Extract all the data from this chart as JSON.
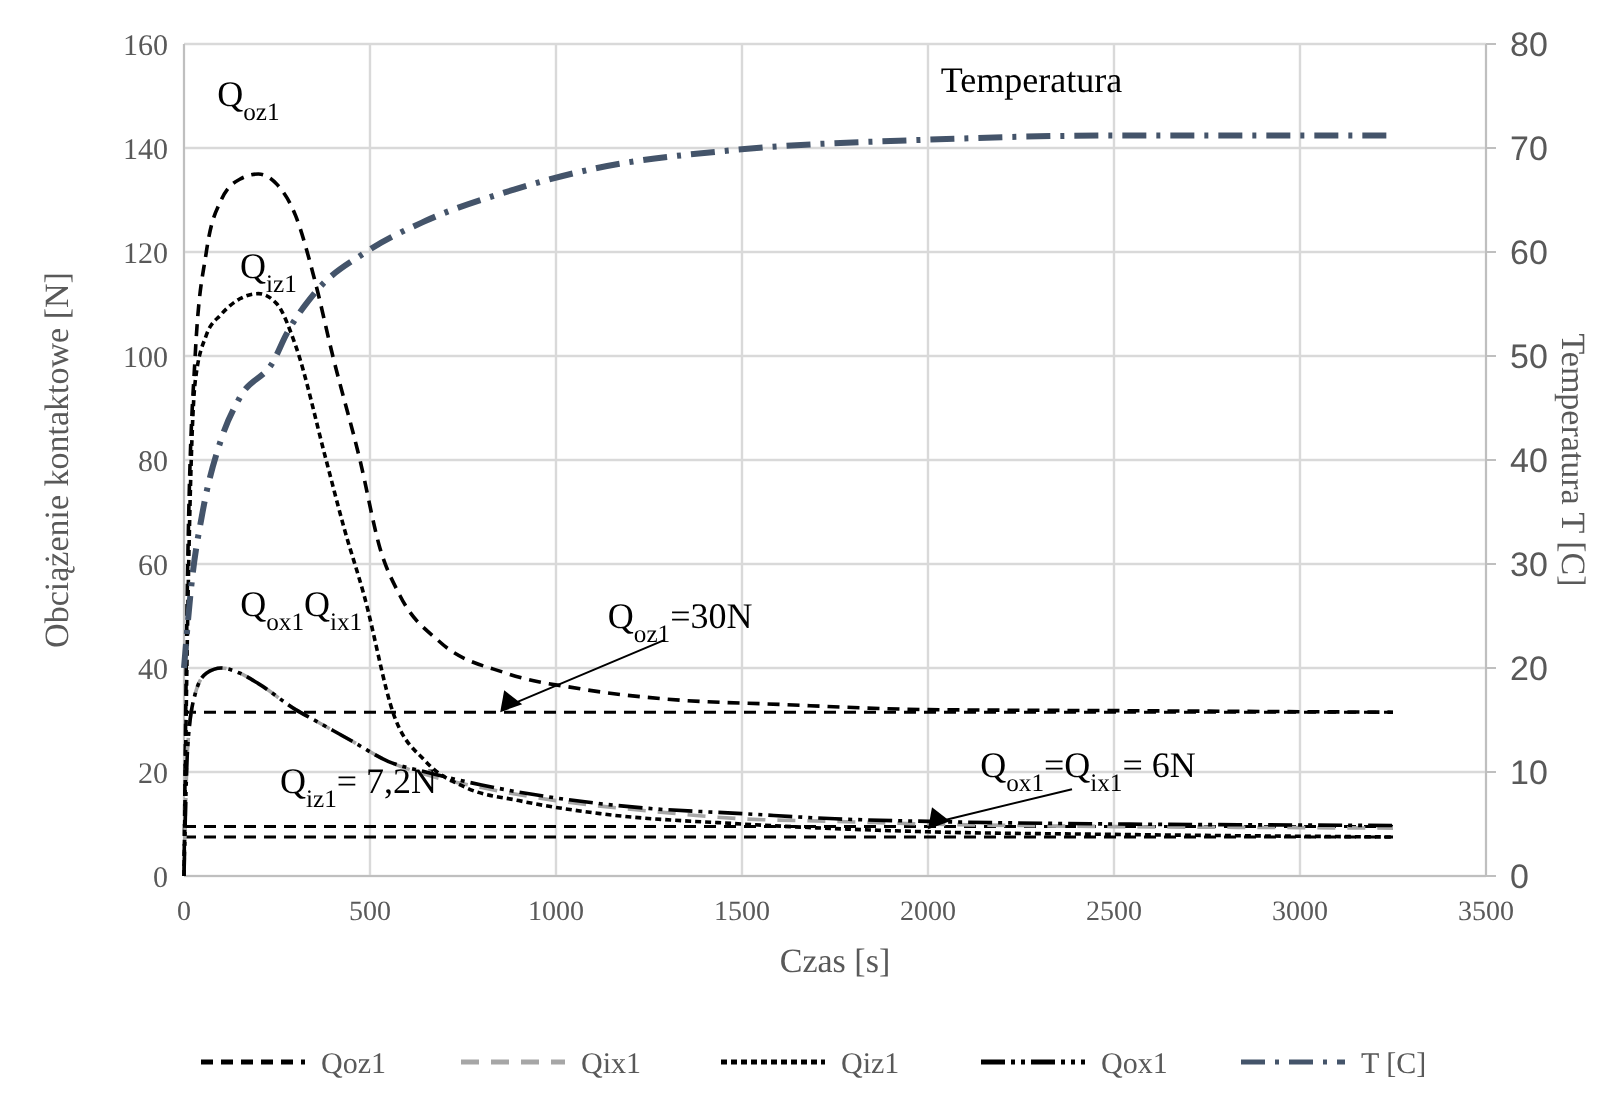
{
  "chart_data": {
    "type": "line",
    "xlabel": "Czas [s]",
    "ylabel": "Obciążenie kontaktowe [N]",
    "y2label": "Temperatura T [C]",
    "xlim": [
      0,
      3500
    ],
    "xticks": [
      0,
      500,
      1000,
      1500,
      2000,
      2500,
      3000,
      3500
    ],
    "ylim": [
      0,
      160
    ],
    "yticks": [
      0,
      20,
      40,
      60,
      80,
      100,
      120,
      140,
      160
    ],
    "y2lim": [
      0,
      80
    ],
    "y2ticks": [
      0,
      10,
      20,
      30,
      40,
      50,
      60,
      70,
      80
    ],
    "grid": true,
    "legend": "bottom",
    "marker": "none",
    "series": [
      {
        "name": "Qoz1",
        "color": "#000000",
        "line_style": "dashed",
        "x": [
          0,
          10,
          30,
          60,
          100,
          150,
          200,
          250,
          300,
          350,
          400,
          473,
          527,
          580,
          688,
          866,
          1065,
          1300,
          1600,
          2000,
          2500,
          3000,
          3250
        ],
        "values": [
          0,
          60,
          100,
          120,
          130,
          134,
          135,
          133,
          127,
          115,
          100,
          80,
          63,
          54,
          45,
          39,
          36,
          34,
          33,
          32,
          31.8,
          31.6,
          31.5
        ]
      },
      {
        "name": "Qix1",
        "color": "#a6a6a6",
        "line_style": "dashed",
        "x": [
          0,
          10,
          30,
          60,
          100,
          150,
          200,
          300,
          350,
          450,
          550,
          650,
          800,
          1000,
          1250,
          1500,
          1750,
          2000,
          2500,
          3000,
          3250
        ],
        "values": [
          0,
          25,
          35,
          39,
          40,
          39,
          37,
          32,
          30,
          26,
          22,
          19.5,
          17,
          14.5,
          12.5,
          11,
          10.5,
          10,
          9.5,
          9.3,
          9.2
        ]
      },
      {
        "name": "Qiz1",
        "color": "#000000",
        "line_style": "dotted",
        "x": [
          0,
          10,
          30,
          60,
          100,
          150,
          200,
          250,
          300,
          382,
          430,
          484,
          564,
          650,
          758,
          900,
          1118,
          1500,
          2000,
          2500,
          3250
        ],
        "values": [
          0,
          50,
          95,
          104,
          108,
          111,
          112,
          110,
          102,
          80,
          67,
          54,
          31,
          22,
          17,
          14.5,
          12,
          10,
          8.5,
          8,
          7.5
        ]
      },
      {
        "name": "Qox1",
        "color": "#000000",
        "line_style": "dashed",
        "x": [
          0,
          10,
          30,
          60,
          100,
          150,
          200,
          300,
          350,
          450,
          550,
          650,
          800,
          1000,
          1250,
          1500,
          1750,
          2000,
          2500,
          3000,
          3250
        ],
        "values": [
          0,
          25,
          35,
          39,
          40,
          39,
          37,
          32,
          30,
          26,
          22,
          20,
          17.5,
          15,
          13,
          12,
          11,
          10.5,
          10,
          9.8,
          9.7
        ]
      },
      {
        "name": "T [C]",
        "color": "#44546a",
        "line_style": "dashed",
        "axis": "y2",
        "x": [
          0,
          20,
          50,
          100,
          150,
          242,
          274,
          350,
          489,
          650,
          887,
          1100,
          1478,
          2000,
          2500,
          3000,
          3250
        ],
        "values": [
          20,
          28,
          35,
          42,
          46,
          49.6,
          52,
          56,
          60,
          63,
          66,
          68,
          69.8,
          70.8,
          71.2,
          71.2,
          71.2
        ]
      }
    ],
    "ref_lines": [
      {
        "axis": "y",
        "value": 31.5,
        "color": "#000000",
        "line_style": "dashed"
      },
      {
        "axis": "y",
        "value": 9.5,
        "color": "#000000",
        "line_style": "dashed"
      },
      {
        "axis": "y",
        "value": 7.5,
        "color": "#000000",
        "line_style": "dashed"
      }
    ],
    "annotations": [
      {
        "text": "Q$_{oz1}$",
        "x": 200,
        "y": 135
      },
      {
        "text": "Q$_{iz1}$",
        "x": 200,
        "y": 112
      },
      {
        "text": "Q$_{ox1}$Q$_{ix1}$",
        "x": 100,
        "y": 40
      },
      {
        "text": "Q$_{iz1}$= 7,2N",
        "x": 0,
        "y": 7.5
      },
      {
        "text": "Q$_{oz1}$=30N",
        "x": 850,
        "y": 31.5
      },
      {
        "text": "Q$_{ox1}$=Q$_{ix1}$= 6N",
        "x": 2000,
        "y": 9
      },
      "Temperatura"
    ]
  }
}
